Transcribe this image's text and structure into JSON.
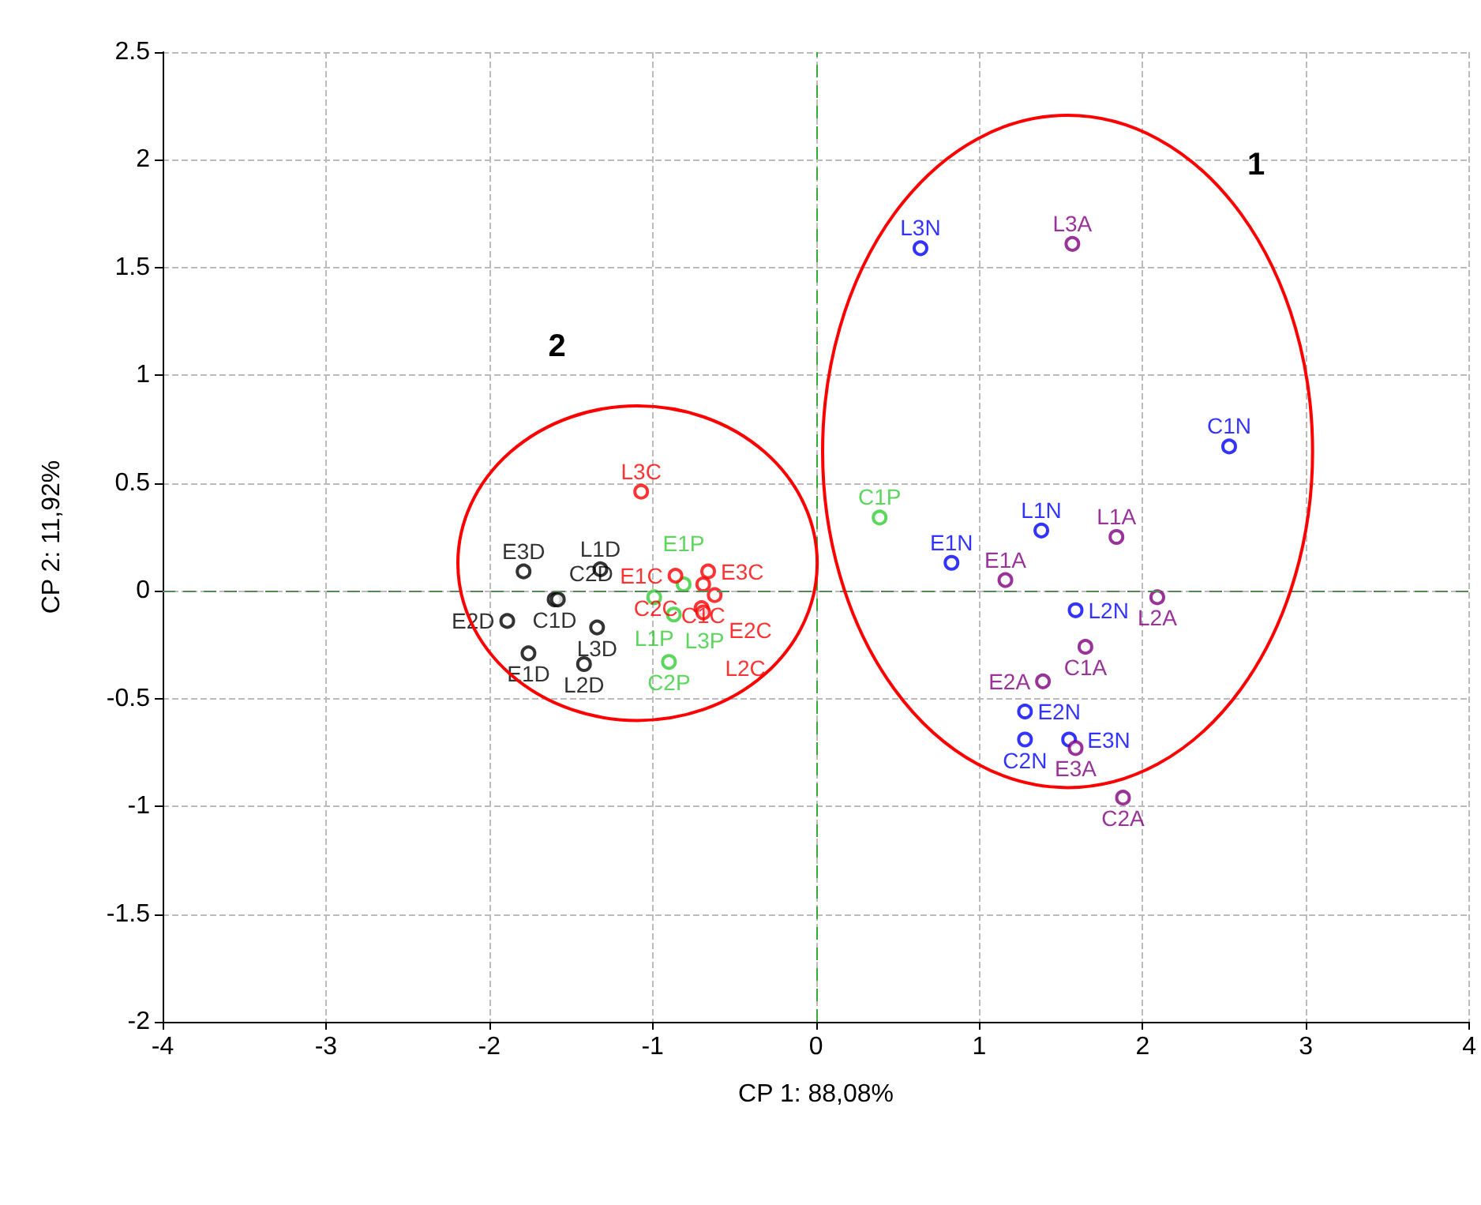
{
  "chart_data": {
    "type": "scatter",
    "xlabel": "CP 1: 88,08%",
    "ylabel": "CP 2: 11,92%",
    "xlim": [
      -4,
      4
    ],
    "xticks": [
      -4,
      -3,
      -2,
      -1,
      0,
      1,
      2,
      3,
      4
    ],
    "ylim": [
      -2,
      2.5
    ],
    "yticks": [
      -2,
      -1.5,
      -1,
      -0.5,
      0,
      0.5,
      1,
      1.5,
      2,
      2.5
    ],
    "grid": true,
    "marker": "circle",
    "ref_lines": [
      {
        "axis": "x",
        "value": 0,
        "color": "#33aa33",
        "line_style": "dashed"
      },
      {
        "axis": "y",
        "value": 0,
        "color": "#558855",
        "line_style": "dashed"
      }
    ],
    "annotations": [
      "1",
      "2"
    ],
    "series": [
      {
        "color": "#0000ff",
        "x": [
          0.64,
          2.53,
          1.38,
          0.83,
          1.59,
          1.28,
          1.28,
          1.55
        ],
        "values": [
          1.59,
          0.67,
          0.28,
          0.13,
          -0.09,
          -0.56,
          -0.69,
          -0.69
        ],
        "value_labels": [
          "L3N",
          "C1N",
          "L1N",
          "E1N",
          "L2N",
          "E2N",
          "C2N",
          "E3N"
        ]
      },
      {
        "color": "#800080",
        "x": [
          1.57,
          1.84,
          1.16,
          2.09,
          1.65,
          1.39,
          1.59,
          1.88
        ],
        "values": [
          1.61,
          0.25,
          0.05,
          -0.03,
          -0.26,
          -0.42,
          -0.73,
          -0.96
        ],
        "value_labels": [
          "L3A",
          "L1A",
          "E1A",
          "L2A",
          "C1A",
          "E2A",
          "E3A",
          "C2A"
        ]
      },
      {
        "color": "#33cc33",
        "x": [
          0.39,
          -0.81,
          -0.99,
          -0.87,
          -0.9
        ],
        "values": [
          0.34,
          0.03,
          -0.03,
          -0.11,
          -0.33
        ],
        "value_labels": [
          "C1P",
          "E1P",
          "L1P",
          "L3P",
          "C2P"
        ]
      },
      {
        "color": "#ff0000",
        "x": [
          -1.07,
          -0.86,
          -0.66,
          -0.69,
          -0.62,
          -0.7,
          -0.69
        ],
        "values": [
          0.46,
          0.07,
          0.09,
          0.03,
          -0.02,
          -0.08,
          -0.1
        ],
        "value_labels": [
          "L3C",
          "E1C",
          "E3C",
          "C1C",
          "E2C",
          "C2C",
          "L2C"
        ]
      },
      {
        "color": "#000000",
        "x": [
          -1.79,
          -1.32,
          -1.6,
          -1.58,
          -1.89,
          -1.34,
          -1.76,
          -1.42
        ],
        "values": [
          0.09,
          0.1,
          -0.04,
          -0.04,
          -0.14,
          -0.17,
          -0.29,
          -0.34
        ],
        "value_labels": [
          "E3D",
          "L1D",
          "C1D",
          "C2D",
          "E2D",
          "L3D",
          "E1D",
          "L2D"
        ]
      }
    ]
  }
}
